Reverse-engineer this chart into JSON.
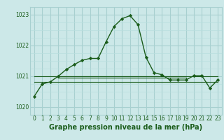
{
  "title": "Graphe pression niveau de la mer (hPa)",
  "bg_color": "#cce8e8",
  "grid_color_major": "#a8d0d0",
  "grid_color_minor": "#b8dede",
  "line_color": "#1a5c1a",
  "marker_color": "#1a5c1a",
  "xlim": [
    -0.5,
    23.5
  ],
  "ylim": [
    1019.75,
    1023.25
  ],
  "yticks": [
    1020,
    1021,
    1022,
    1023
  ],
  "xticks": [
    0,
    1,
    2,
    3,
    4,
    5,
    6,
    7,
    8,
    9,
    10,
    11,
    12,
    13,
    14,
    15,
    16,
    17,
    18,
    19,
    20,
    21,
    22,
    23
  ],
  "main_series": [
    [
      0,
      1020.35
    ],
    [
      1,
      1020.75
    ],
    [
      2,
      1020.82
    ],
    [
      3,
      1021.0
    ],
    [
      4,
      1021.22
    ],
    [
      5,
      1021.38
    ],
    [
      6,
      1021.52
    ],
    [
      7,
      1021.58
    ],
    [
      8,
      1021.58
    ],
    [
      9,
      1022.12
    ],
    [
      10,
      1022.62
    ],
    [
      11,
      1022.87
    ],
    [
      12,
      1022.97
    ],
    [
      13,
      1022.68
    ],
    [
      14,
      1021.62
    ],
    [
      15,
      1021.12
    ],
    [
      16,
      1021.05
    ],
    [
      17,
      1020.88
    ],
    [
      18,
      1020.88
    ],
    [
      19,
      1020.88
    ],
    [
      20,
      1021.02
    ],
    [
      21,
      1021.02
    ],
    [
      22,
      1020.62
    ],
    [
      23,
      1020.88
    ]
  ],
  "flat_line1": [
    [
      0,
      23
    ],
    [
      1020.82,
      1020.82
    ]
  ],
  "flat_line2": [
    [
      0,
      23
    ],
    [
      1021.0,
      1021.0
    ]
  ],
  "flat_line3": [
    [
      3,
      19
    ],
    [
      1021.0,
      1021.0
    ]
  ],
  "flat_line4": [
    [
      3,
      19
    ],
    [
      1020.95,
      1020.95
    ]
  ],
  "ylabel_fontsize": 5.5,
  "xlabel_fontsize": 7.0,
  "tick_fontsize": 5.5
}
